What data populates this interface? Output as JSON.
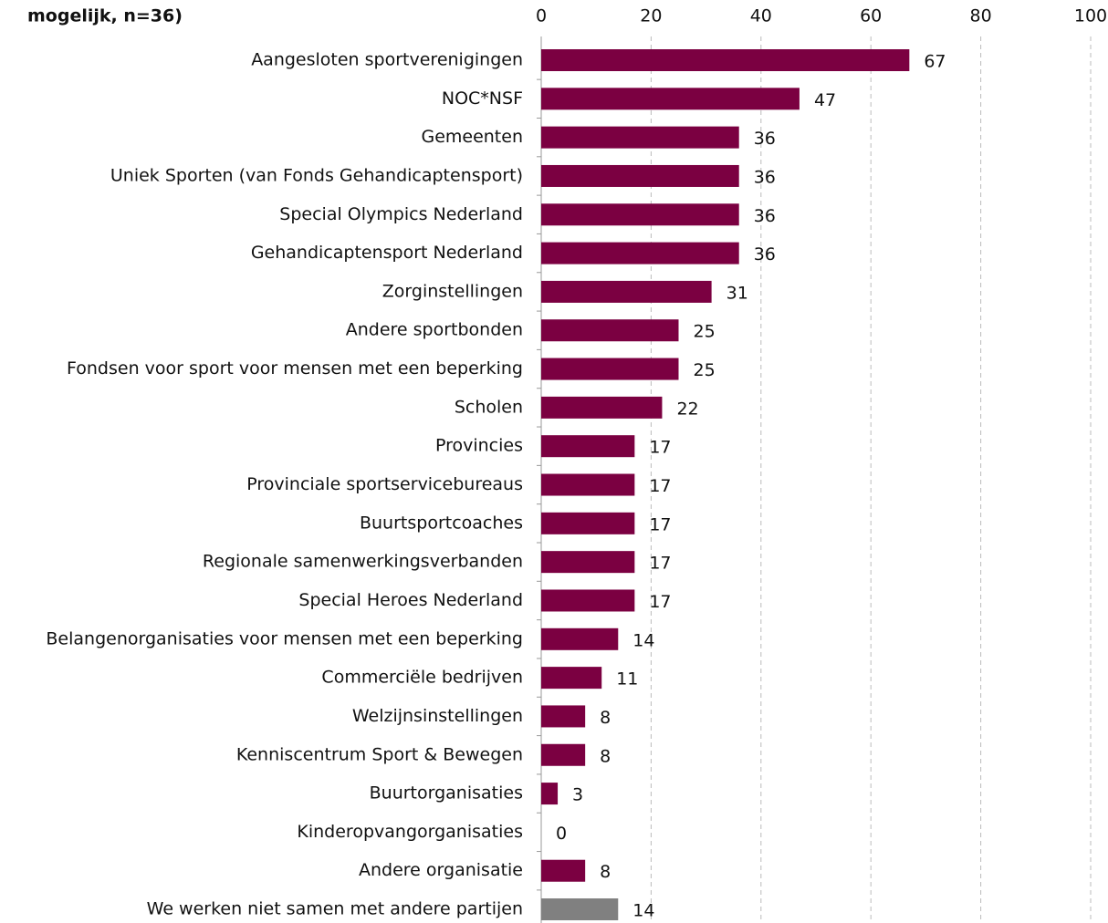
{
  "chart_data": {
    "type": "barh",
    "title": "mogelijk, n=36)",
    "categories": [
      "Aangesloten sportverenigingen",
      "NOC*NSF",
      "Gemeenten",
      "Uniek Sporten (van Fonds Gehandicaptensport)",
      "Special Olympics Nederland",
      "Gehandicaptensport Nederland",
      "Zorginstellingen",
      "Andere sportbonden",
      "Fondsen voor sport voor mensen met een beperking",
      "Scholen",
      "Provincies",
      "Provinciale sportservicebureaus",
      "Buurtsportcoaches",
      "Regionale samenwerkingsverbanden",
      "Special Heroes Nederland",
      "Belangenorganisaties voor mensen met een beperking",
      "Commerciële bedrijven",
      "Welzijnsinstellingen",
      "Kenniscentrum Sport & Bewegen",
      "Buurtorganisaties",
      "Kinderopvangorganisaties",
      "Andere organisatie",
      "We werken niet samen met andere partijen"
    ],
    "values": [
      67,
      47,
      36,
      36,
      36,
      36,
      31,
      25,
      25,
      22,
      17,
      17,
      17,
      17,
      17,
      14,
      11,
      8,
      8,
      3,
      0,
      8,
      14
    ],
    "colors": [
      "#7b0041",
      "#7b0041",
      "#7b0041",
      "#7b0041",
      "#7b0041",
      "#7b0041",
      "#7b0041",
      "#7b0041",
      "#7b0041",
      "#7b0041",
      "#7b0041",
      "#7b0041",
      "#7b0041",
      "#7b0041",
      "#7b0041",
      "#7b0041",
      "#7b0041",
      "#7b0041",
      "#7b0041",
      "#7b0041",
      "#7b0041",
      "#7b0041",
      "#808080"
    ],
    "xlim": [
      0,
      100
    ],
    "xticks": [
      0,
      20,
      40,
      60,
      80,
      100
    ],
    "grid": true
  }
}
